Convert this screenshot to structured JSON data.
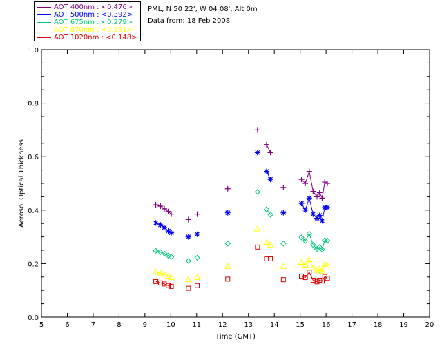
{
  "info": {
    "site_line": "PML, N 50 22', W 04 08', Alt 0m",
    "date_line": "Data from: 18 Feb 2008"
  },
  "chart_data": {
    "type": "scatter",
    "title": "",
    "xlabel": "Time (GMT)",
    "ylabel": "Aerosol Optical Thickness",
    "xlim": [
      5,
      20
    ],
    "ylim": [
      0.0,
      1.0
    ],
    "xticks": [
      5,
      6,
      7,
      8,
      9,
      10,
      11,
      12,
      13,
      14,
      15,
      16,
      17,
      18,
      19,
      20
    ],
    "yticks": [
      0.0,
      0.2,
      0.4,
      0.6,
      0.8,
      1.0
    ],
    "series": [
      {
        "name": "AOT  400nm",
        "legend": "AOT  400nm : <0.476>",
        "color": "#800080",
        "marker": "plus",
        "x": [
          9.42,
          9.6,
          9.75,
          9.9,
          10.02,
          10.68,
          11.02,
          12.2,
          13.35,
          13.7,
          13.85,
          14.35,
          15.05,
          15.2,
          15.35,
          15.5,
          15.65,
          15.75,
          15.85,
          15.95,
          16.05
        ],
        "y": [
          0.42,
          0.415,
          0.405,
          0.395,
          0.385,
          0.365,
          0.385,
          0.48,
          0.7,
          0.645,
          0.615,
          0.485,
          0.515,
          0.5,
          0.545,
          0.47,
          0.45,
          0.465,
          0.445,
          0.505,
          0.5
        ]
      },
      {
        "name": "AOT  500nm",
        "legend": "AOT  500nm : <0.392>",
        "color": "#0000ff",
        "marker": "asterisk",
        "x": [
          9.42,
          9.6,
          9.75,
          9.9,
          10.02,
          10.68,
          11.02,
          12.2,
          13.35,
          13.7,
          13.85,
          14.35,
          15.05,
          15.2,
          15.35,
          15.5,
          15.65,
          15.75,
          15.85,
          15.95,
          16.05
        ],
        "y": [
          0.352,
          0.345,
          0.335,
          0.322,
          0.315,
          0.3,
          0.31,
          0.39,
          0.615,
          0.545,
          0.515,
          0.39,
          0.425,
          0.4,
          0.445,
          0.385,
          0.37,
          0.38,
          0.36,
          0.41,
          0.41
        ]
      },
      {
        "name": "AOT  675nm",
        "legend": "AOT  675nm : <0.279>",
        "color": "#00c878",
        "marker": "diamond",
        "x": [
          9.42,
          9.6,
          9.75,
          9.9,
          10.02,
          10.68,
          11.02,
          12.2,
          13.35,
          13.7,
          13.85,
          14.35,
          15.05,
          15.2,
          15.35,
          15.5,
          15.65,
          15.75,
          15.85,
          15.95,
          16.05
        ],
        "y": [
          0.248,
          0.243,
          0.238,
          0.23,
          0.225,
          0.21,
          0.222,
          0.275,
          0.468,
          0.403,
          0.383,
          0.275,
          0.298,
          0.285,
          0.312,
          0.27,
          0.255,
          0.262,
          0.253,
          0.287,
          0.286
        ]
      },
      {
        "name": "AOT  870nm",
        "legend": "AOT  870nm : <0.191>",
        "color": "#ffff00",
        "marker": "triangle",
        "x": [
          9.42,
          9.6,
          9.75,
          9.9,
          10.02,
          10.68,
          11.02,
          12.2,
          13.35,
          13.7,
          13.85,
          14.35,
          15.05,
          15.2,
          15.35,
          15.5,
          15.65,
          15.75,
          15.85,
          15.95,
          16.05
        ],
        "y": [
          0.17,
          0.165,
          0.16,
          0.153,
          0.148,
          0.14,
          0.148,
          0.19,
          0.33,
          0.28,
          0.27,
          0.19,
          0.205,
          0.195,
          0.215,
          0.185,
          0.175,
          0.18,
          0.172,
          0.198,
          0.192
        ]
      },
      {
        "name": "AOT 1020nm",
        "legend": "AOT 1020nm : <0.148>",
        "color": "#dc0000",
        "marker": "square",
        "x": [
          9.42,
          9.6,
          9.75,
          9.9,
          10.02,
          10.68,
          11.02,
          12.2,
          13.35,
          13.7,
          13.85,
          14.35,
          15.05,
          15.2,
          15.35,
          15.5,
          15.65,
          15.75,
          15.85,
          15.95,
          16.05
        ],
        "y": [
          0.133,
          0.128,
          0.124,
          0.118,
          0.115,
          0.108,
          0.118,
          0.142,
          0.262,
          0.218,
          0.218,
          0.14,
          0.153,
          0.148,
          0.168,
          0.138,
          0.132,
          0.138,
          0.135,
          0.152,
          0.145
        ]
      }
    ]
  }
}
